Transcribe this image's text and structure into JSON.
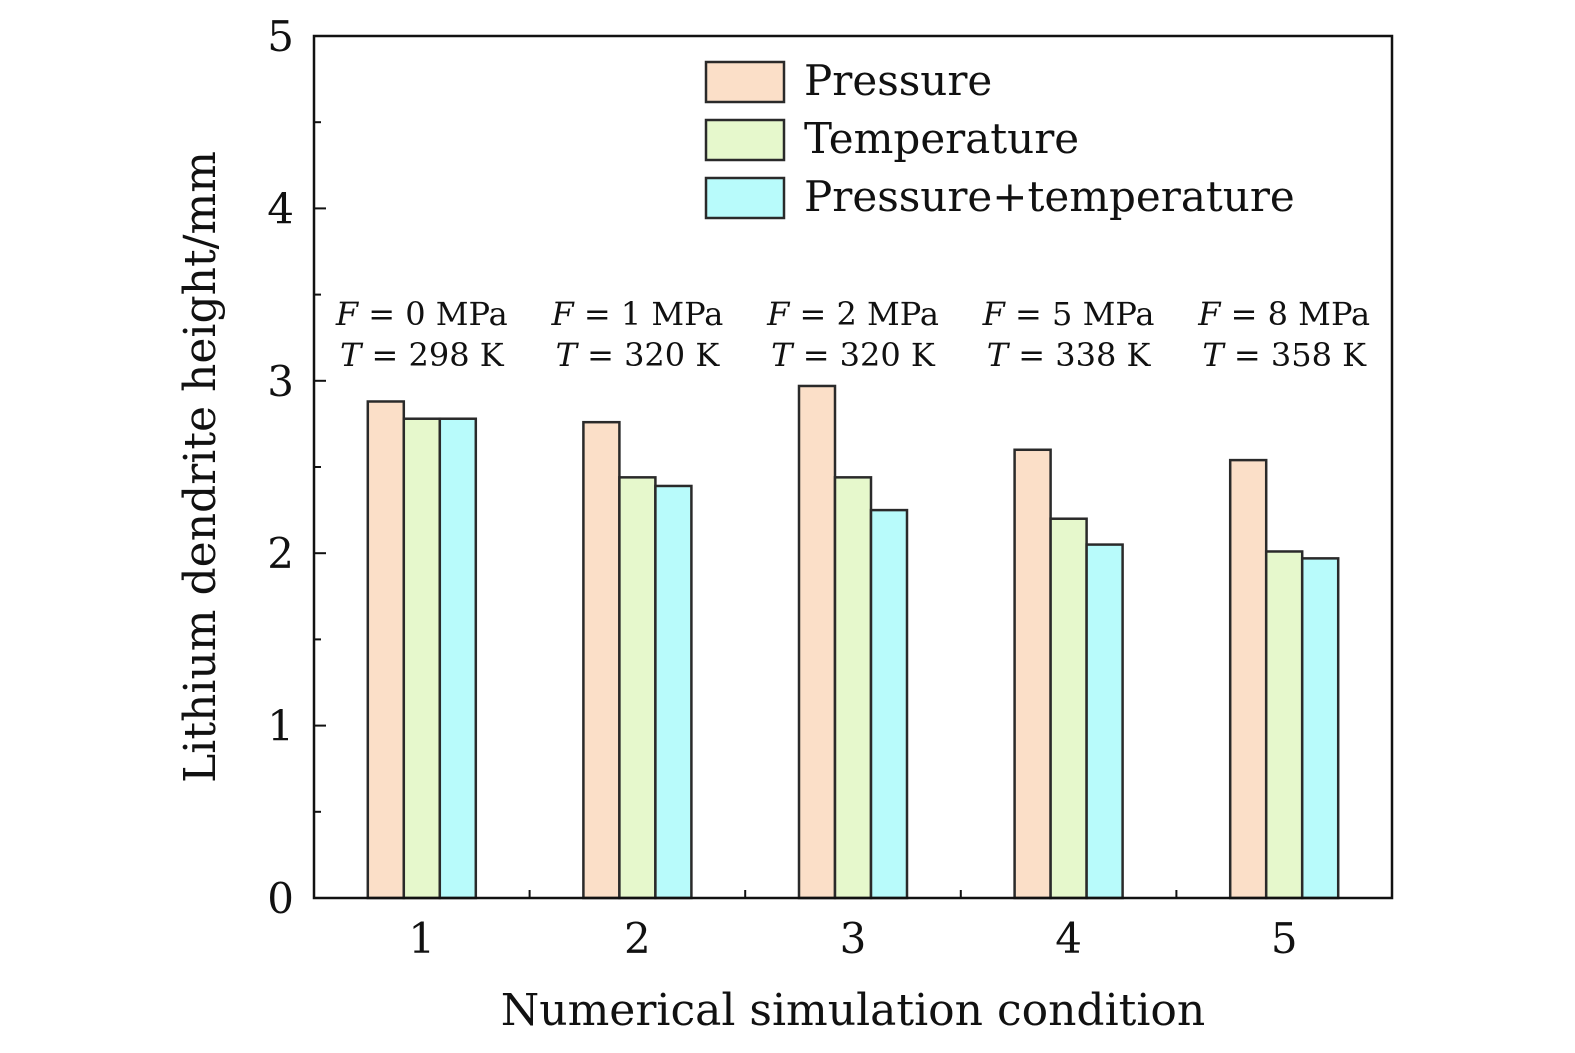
{
  "chart_data": {
    "type": "bar",
    "title": "",
    "xlabel": "Numerical simulation condition",
    "ylabel": "Lithium dendrite height/mm",
    "ylim": [
      0,
      5
    ],
    "yticks": [
      "0",
      "1",
      "2",
      "3",
      "4",
      "5"
    ],
    "categories": [
      "1",
      "2",
      "3",
      "4",
      "5"
    ],
    "series": [
      {
        "name": "Pressure",
        "color": "#fbdfc8",
        "values": [
          2.88,
          2.76,
          2.97,
          2.6,
          2.54
        ]
      },
      {
        "name": "Temperature",
        "color": "#e6f8cc",
        "values": [
          2.78,
          2.44,
          2.44,
          2.2,
          2.01
        ]
      },
      {
        "name": "Pressure+temperature",
        "color": "#b8fbfb",
        "values": [
          2.78,
          2.39,
          2.25,
          2.05,
          1.97
        ]
      }
    ],
    "annotations": [
      {
        "f_label": "F",
        "f_text": "= 0 MPa",
        "t_label": "T",
        "t_text": "= 298 K"
      },
      {
        "f_label": "F",
        "f_text": "= 1 MPa",
        "t_label": "T",
        "t_text": "= 320 K"
      },
      {
        "f_label": "F",
        "f_text": "= 2 MPa",
        "t_label": "T",
        "t_text": "= 320 K"
      },
      {
        "f_label": "F",
        "f_text": "= 5 MPa",
        "t_label": "T",
        "t_text": "= 338 K"
      },
      {
        "f_label": "F",
        "f_text": "= 8 MPa",
        "t_label": "T",
        "t_text": "= 358 K"
      }
    ],
    "legend_position": "top-right",
    "grid": false
  }
}
